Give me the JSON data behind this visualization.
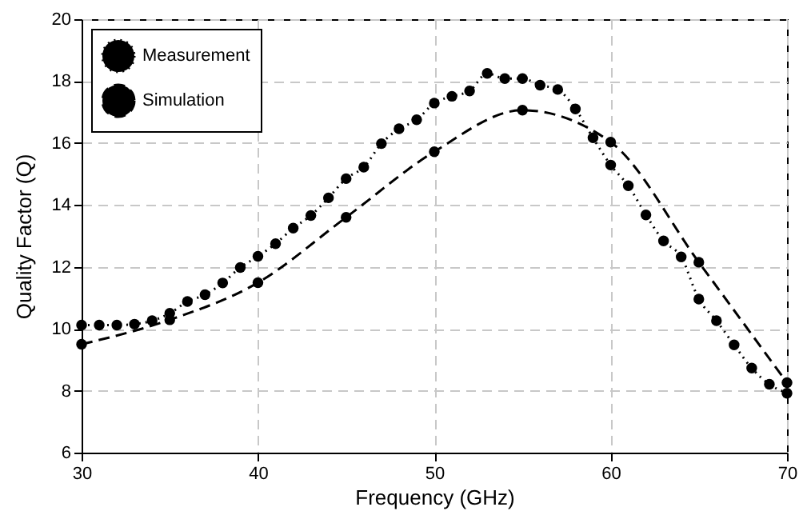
{
  "chart_data": {
    "type": "line",
    "xlabel": "Frequency (GHz)",
    "ylabel": "Quality Factor (Q)",
    "xlim": [
      30,
      70
    ],
    "xticks": [
      30,
      40,
      50,
      60,
      70
    ],
    "ylim": [
      6,
      20
    ],
    "yticks": [
      6,
      8,
      10,
      12,
      14,
      16,
      18,
      20
    ],
    "grid": true,
    "legend": "top left",
    "marker": "circle",
    "series": [
      {
        "name": "Measurement",
        "color": "#000000",
        "line_style": "dotted",
        "x": [
          30,
          31,
          32,
          33,
          34,
          35,
          36,
          37,
          38,
          39,
          40,
          41,
          42,
          43,
          44,
          45,
          46,
          47,
          48,
          49,
          50,
          51,
          52,
          53,
          54,
          55,
          56,
          57,
          58,
          59,
          60,
          61,
          62,
          63,
          64,
          65,
          66,
          67,
          68,
          69,
          70
        ],
        "values": [
          10.12,
          10.12,
          10.12,
          10.15,
          10.26,
          10.5,
          10.88,
          11.1,
          11.48,
          11.98,
          12.34,
          12.75,
          13.25,
          13.66,
          14.23,
          14.85,
          15.22,
          15.98,
          16.46,
          16.75,
          17.29,
          17.51,
          17.68,
          18.25,
          18.08,
          18.08,
          17.87,
          17.73,
          17.1,
          16.17,
          15.29,
          14.62,
          13.68,
          12.84,
          12.32,
          10.96,
          10.26,
          9.48,
          8.73,
          8.21,
          7.92
        ]
      },
      {
        "name": "Simulation",
        "color": "#000000",
        "line_style": "dashed",
        "x": [
          30,
          35,
          40,
          45,
          50,
          55,
          60,
          65,
          70
        ],
        "values": [
          9.5,
          10.29,
          11.49,
          13.6,
          15.72,
          17.06,
          16.03,
          12.15,
          8.26
        ]
      }
    ]
  }
}
